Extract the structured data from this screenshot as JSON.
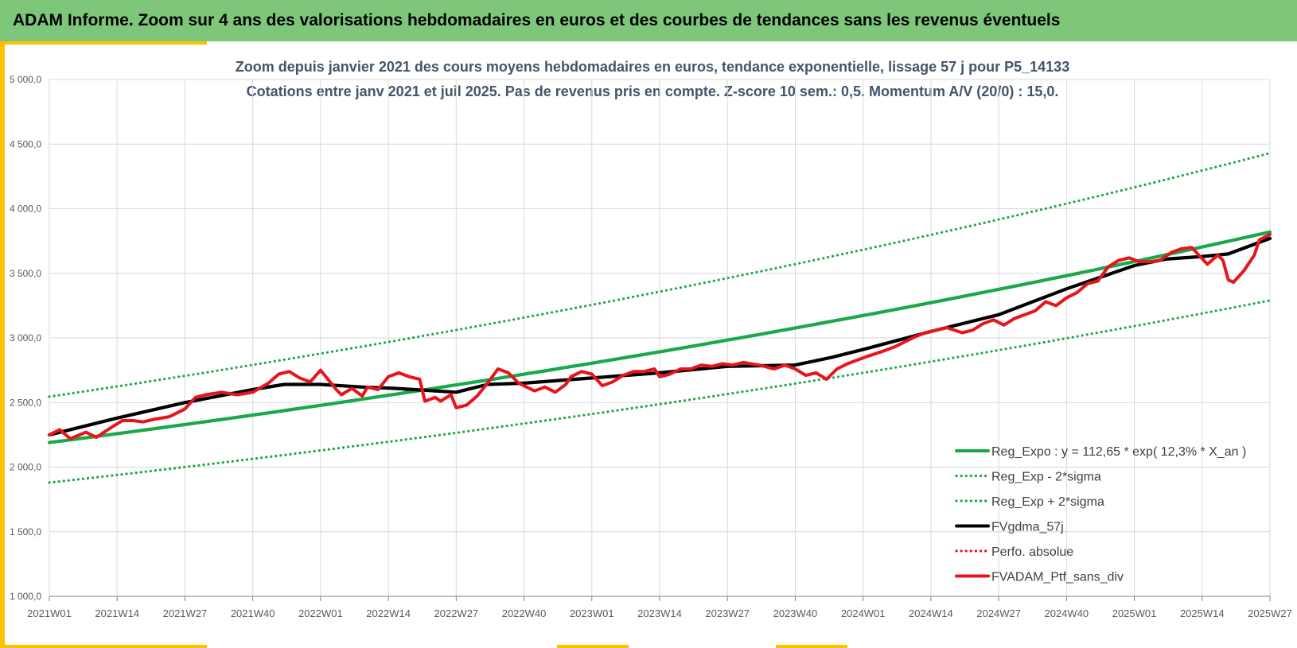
{
  "header": {
    "title": "ADAM Informe. Zoom sur 4 ans des valorisations hebdomadaires en euros et des courbes de tendances sans les revenus éventuels"
  },
  "chart_data": {
    "type": "line",
    "title": "Zoom depuis janvier 2021 des cours moyens hebdomadaires  en euros, tendance exponentielle, lissage 57 j pour P5_14133",
    "subtitle": "Cotations entre janv 2021 et juil 2025. Pas de revenus pris en compte. Z-score 10 sem.: 0,5. Momentum A/V (20/0) : 15,0.",
    "xlabel": "",
    "ylabel": "",
    "ylim": [
      1000,
      5000
    ],
    "y_ticks": [
      "1 000,0",
      "1 500,0",
      "2 000,0",
      "2 500,0",
      "3 000,0",
      "3 500,0",
      "4 000,0",
      "4 500,0",
      "5 000,0"
    ],
    "x_ticks": [
      "2021W01",
      "2021W14",
      "2021W27",
      "2021W40",
      "2022W01",
      "2022W14",
      "2022W27",
      "2022W40",
      "2023W01",
      "2023W14",
      "2023W27",
      "2023W40",
      "2024W01",
      "2024W14",
      "2024W27",
      "2024W40",
      "2025W01",
      "2025W14",
      "2025W27"
    ],
    "x_tick_index": [
      0,
      13,
      26,
      39,
      52,
      65,
      78,
      91,
      104,
      117,
      130,
      143,
      156,
      169,
      182,
      195,
      208,
      221,
      234
    ],
    "grid": true,
    "legend_position": "bottom-right",
    "colors": {
      "green": "#19a84a",
      "dotted_green": "#19a84a",
      "black": "#000000",
      "red": "#e8141c"
    },
    "series": [
      {
        "name": "Reg_Expo : y = 112,65 * exp( 12,3% *  X_an )",
        "style": "solid",
        "color": "#19a84a",
        "x": [
          0,
          234
        ],
        "y": [
          2190,
          3820
        ],
        "shape": "exponential"
      },
      {
        "name": "Reg_Exp - 2*sigma",
        "style": "dotted",
        "color": "#19a84a",
        "x": [
          0,
          234
        ],
        "y": [
          1880,
          3290
        ],
        "shape": "exponential"
      },
      {
        "name": "Reg_Exp + 2*sigma",
        "style": "dotted",
        "color": "#19a84a",
        "x": [
          0,
          234
        ],
        "y": [
          2545,
          4430
        ],
        "shape": "exponential"
      },
      {
        "name": "FVgdma_57j",
        "style": "solid",
        "color": "#000000",
        "x": [
          0,
          13,
          26,
          39,
          45,
          52,
          60,
          66,
          70,
          78,
          84,
          91,
          104,
          117,
          130,
          143,
          150,
          156,
          169,
          182,
          195,
          208,
          214,
          221,
          226,
          234
        ],
        "y": [
          2250,
          2380,
          2500,
          2600,
          2640,
          2640,
          2620,
          2610,
          2600,
          2580,
          2640,
          2650,
          2690,
          2730,
          2780,
          2790,
          2850,
          2910,
          3050,
          3180,
          3380,
          3560,
          3610,
          3630,
          3650,
          3770
        ]
      },
      {
        "name": "Perfo. absolue",
        "style": "dotted",
        "color": "#e8141c",
        "x": [],
        "y": []
      },
      {
        "name": "FVADAM_Ptf_sans_div",
        "style": "solid",
        "color": "#e8141c",
        "x": [
          0,
          2,
          4,
          7,
          9,
          12,
          14,
          16,
          18,
          20,
          23,
          26,
          28,
          30,
          33,
          36,
          39,
          42,
          44,
          46,
          48,
          50,
          52,
          55,
          56,
          58,
          60,
          61,
          63,
          65,
          67,
          69,
          71,
          72,
          74,
          75,
          77,
          78,
          80,
          82,
          84,
          86,
          88,
          90,
          92,
          93,
          95,
          97,
          99,
          100,
          102,
          104,
          106,
          108,
          110,
          112,
          114,
          116,
          117,
          119,
          121,
          123,
          125,
          127,
          129,
          131,
          133,
          136,
          139,
          141,
          143,
          145,
          147,
          149,
          151,
          153,
          155,
          157,
          160,
          162,
          164,
          166,
          168,
          170,
          172,
          175,
          177,
          179,
          181,
          183,
          185,
          187,
          189,
          191,
          193,
          195,
          197,
          199,
          201,
          203,
          205,
          207,
          209,
          211,
          213,
          215,
          217,
          219,
          222,
          224,
          225,
          226,
          227,
          229,
          231,
          232,
          234
        ],
        "y": [
          2250,
          2290,
          2220,
          2270,
          2230,
          2310,
          2360,
          2360,
          2350,
          2370,
          2390,
          2450,
          2540,
          2560,
          2580,
          2560,
          2580,
          2650,
          2720,
          2740,
          2690,
          2660,
          2750,
          2600,
          2560,
          2610,
          2550,
          2620,
          2600,
          2700,
          2730,
          2700,
          2680,
          2510,
          2540,
          2510,
          2560,
          2460,
          2480,
          2550,
          2650,
          2760,
          2730,
          2650,
          2610,
          2590,
          2620,
          2580,
          2640,
          2700,
          2740,
          2720,
          2630,
          2660,
          2710,
          2740,
          2740,
          2760,
          2700,
          2720,
          2760,
          2760,
          2790,
          2780,
          2800,
          2790,
          2810,
          2790,
          2760,
          2790,
          2760,
          2710,
          2730,
          2680,
          2760,
          2800,
          2830,
          2860,
          2900,
          2930,
          2970,
          3010,
          3040,
          3060,
          3080,
          3040,
          3060,
          3110,
          3140,
          3100,
          3150,
          3180,
          3210,
          3280,
          3250,
          3310,
          3350,
          3420,
          3440,
          3550,
          3600,
          3620,
          3590,
          3590,
          3600,
          3660,
          3690,
          3700,
          3570,
          3640,
          3600,
          3450,
          3430,
          3520,
          3640,
          3760,
          3800
        ]
      }
    ]
  }
}
